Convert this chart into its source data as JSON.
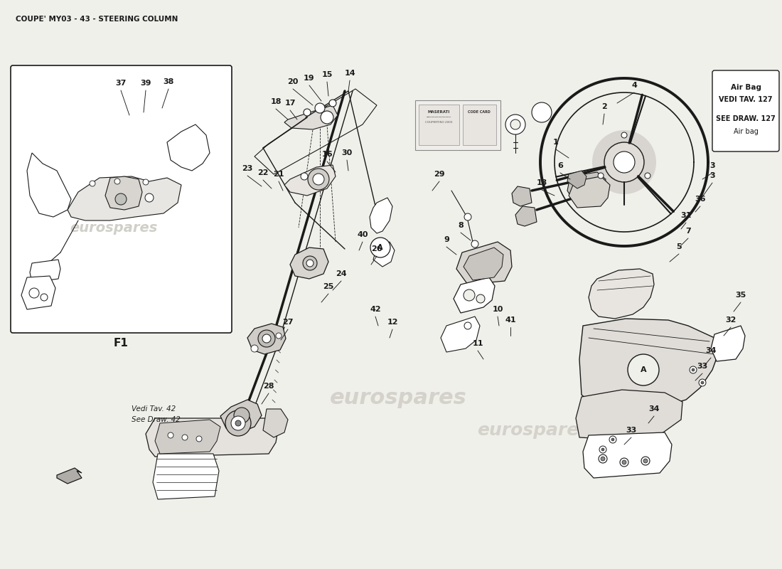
{
  "title": "COUPE' MY03 - 43 - STEERING COLUMN",
  "bg": "#f0f0eb",
  "lc": "#1a1a1a",
  "tc": "#1a1a1a",
  "wm": "eurospares",
  "airbag_text": [
    "Air Bag",
    "VEDI TAV. 127",
    "",
    "SEE DRAW. 127",
    "Air bag"
  ],
  "vedi_text": [
    "Vedi Tav. 42",
    "See Draw. 42"
  ],
  "f1_label": "F1",
  "part_nums": [
    [
      "37",
      170,
      135
    ],
    [
      "39",
      205,
      135
    ],
    [
      "38",
      237,
      135
    ],
    [
      "20",
      410,
      130
    ],
    [
      "19",
      435,
      125
    ],
    [
      "15",
      460,
      120
    ],
    [
      "14",
      490,
      115
    ],
    [
      "18",
      388,
      160
    ],
    [
      "17",
      408,
      162
    ],
    [
      "23",
      355,
      250
    ],
    [
      "22",
      375,
      258
    ],
    [
      "21",
      398,
      258
    ],
    [
      "16",
      463,
      228
    ],
    [
      "30",
      488,
      228
    ],
    [
      "29",
      610,
      252
    ],
    [
      "4",
      890,
      138
    ],
    [
      "2",
      858,
      168
    ],
    [
      "1",
      785,
      218
    ],
    [
      "6",
      790,
      248
    ],
    [
      "13",
      768,
      270
    ],
    [
      "3",
      1000,
      245
    ],
    [
      "36",
      988,
      295
    ],
    [
      "31",
      962,
      318
    ],
    [
      "7",
      968,
      340
    ],
    [
      "5",
      955,
      362
    ],
    [
      "8",
      658,
      328
    ],
    [
      "9",
      630,
      350
    ],
    [
      "10",
      698,
      448
    ],
    [
      "41",
      718,
      462
    ],
    [
      "11",
      678,
      498
    ],
    [
      "42",
      530,
      448
    ],
    [
      "12",
      552,
      465
    ],
    [
      "40",
      508,
      345
    ],
    [
      "26",
      528,
      362
    ],
    [
      "24",
      478,
      398
    ],
    [
      "25",
      462,
      415
    ],
    [
      "27",
      408,
      465
    ],
    [
      "28",
      380,
      558
    ],
    [
      "35",
      1040,
      428
    ],
    [
      "32",
      1025,
      462
    ],
    [
      "34",
      998,
      508
    ],
    [
      "33",
      985,
      528
    ],
    [
      "34",
      918,
      588
    ],
    [
      "33",
      888,
      618
    ]
  ]
}
